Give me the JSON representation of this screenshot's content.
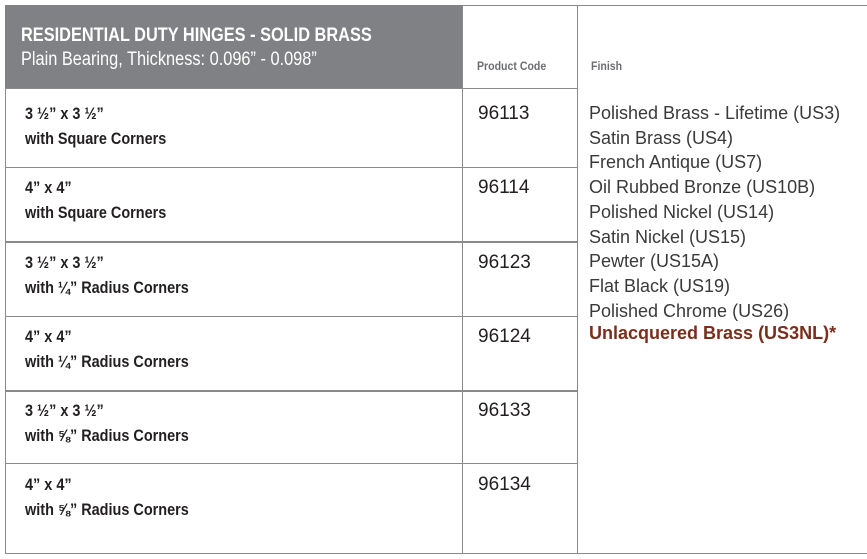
{
  "header": {
    "title": "RESIDENTIAL DUTY HINGES - SOLID BRASS",
    "subtitle": "Plain Bearing, Thickness: 0.096” - 0.098”",
    "product_code_label": "Product Code",
    "finish_label": "Finish"
  },
  "rows": [
    {
      "size": "3 ½” x 3 ½”",
      "corners": "with Square Corners",
      "code": "96113"
    },
    {
      "size": "4” x 4”",
      "corners": "with Square Corners",
      "code": "96114"
    },
    {
      "size": "3 ½” x 3 ½”",
      "corners": "with ¼” Radius Corners",
      "code": "96123"
    },
    {
      "size": "4” x 4”",
      "corners": "with ¼” Radius Corners",
      "code": "96124"
    },
    {
      "size": "3 ½” x 3 ½”",
      "corners": "with ⅝” Radius Corners",
      "code": "96133"
    },
    {
      "size": "4” x 4”",
      "corners": "with ⅝” Radius Corners",
      "code": "96134"
    }
  ],
  "finishes": [
    "Polished Brass - Lifetime (US3)",
    "Satin Brass (US4)",
    "French Antique (US7)",
    "Oil Rubbed Bronze (US10B)",
    "Polished Nickel (US14)",
    "Satin Nickel (US15)",
    "Pewter (US15A)",
    "Flat Black (US19)",
    "Polished Chrome (US26)",
    "Unlacquered Brass (US3NL)*"
  ],
  "colors": {
    "header_bg": "#808184",
    "highlight": "#7a2e1c"
  }
}
